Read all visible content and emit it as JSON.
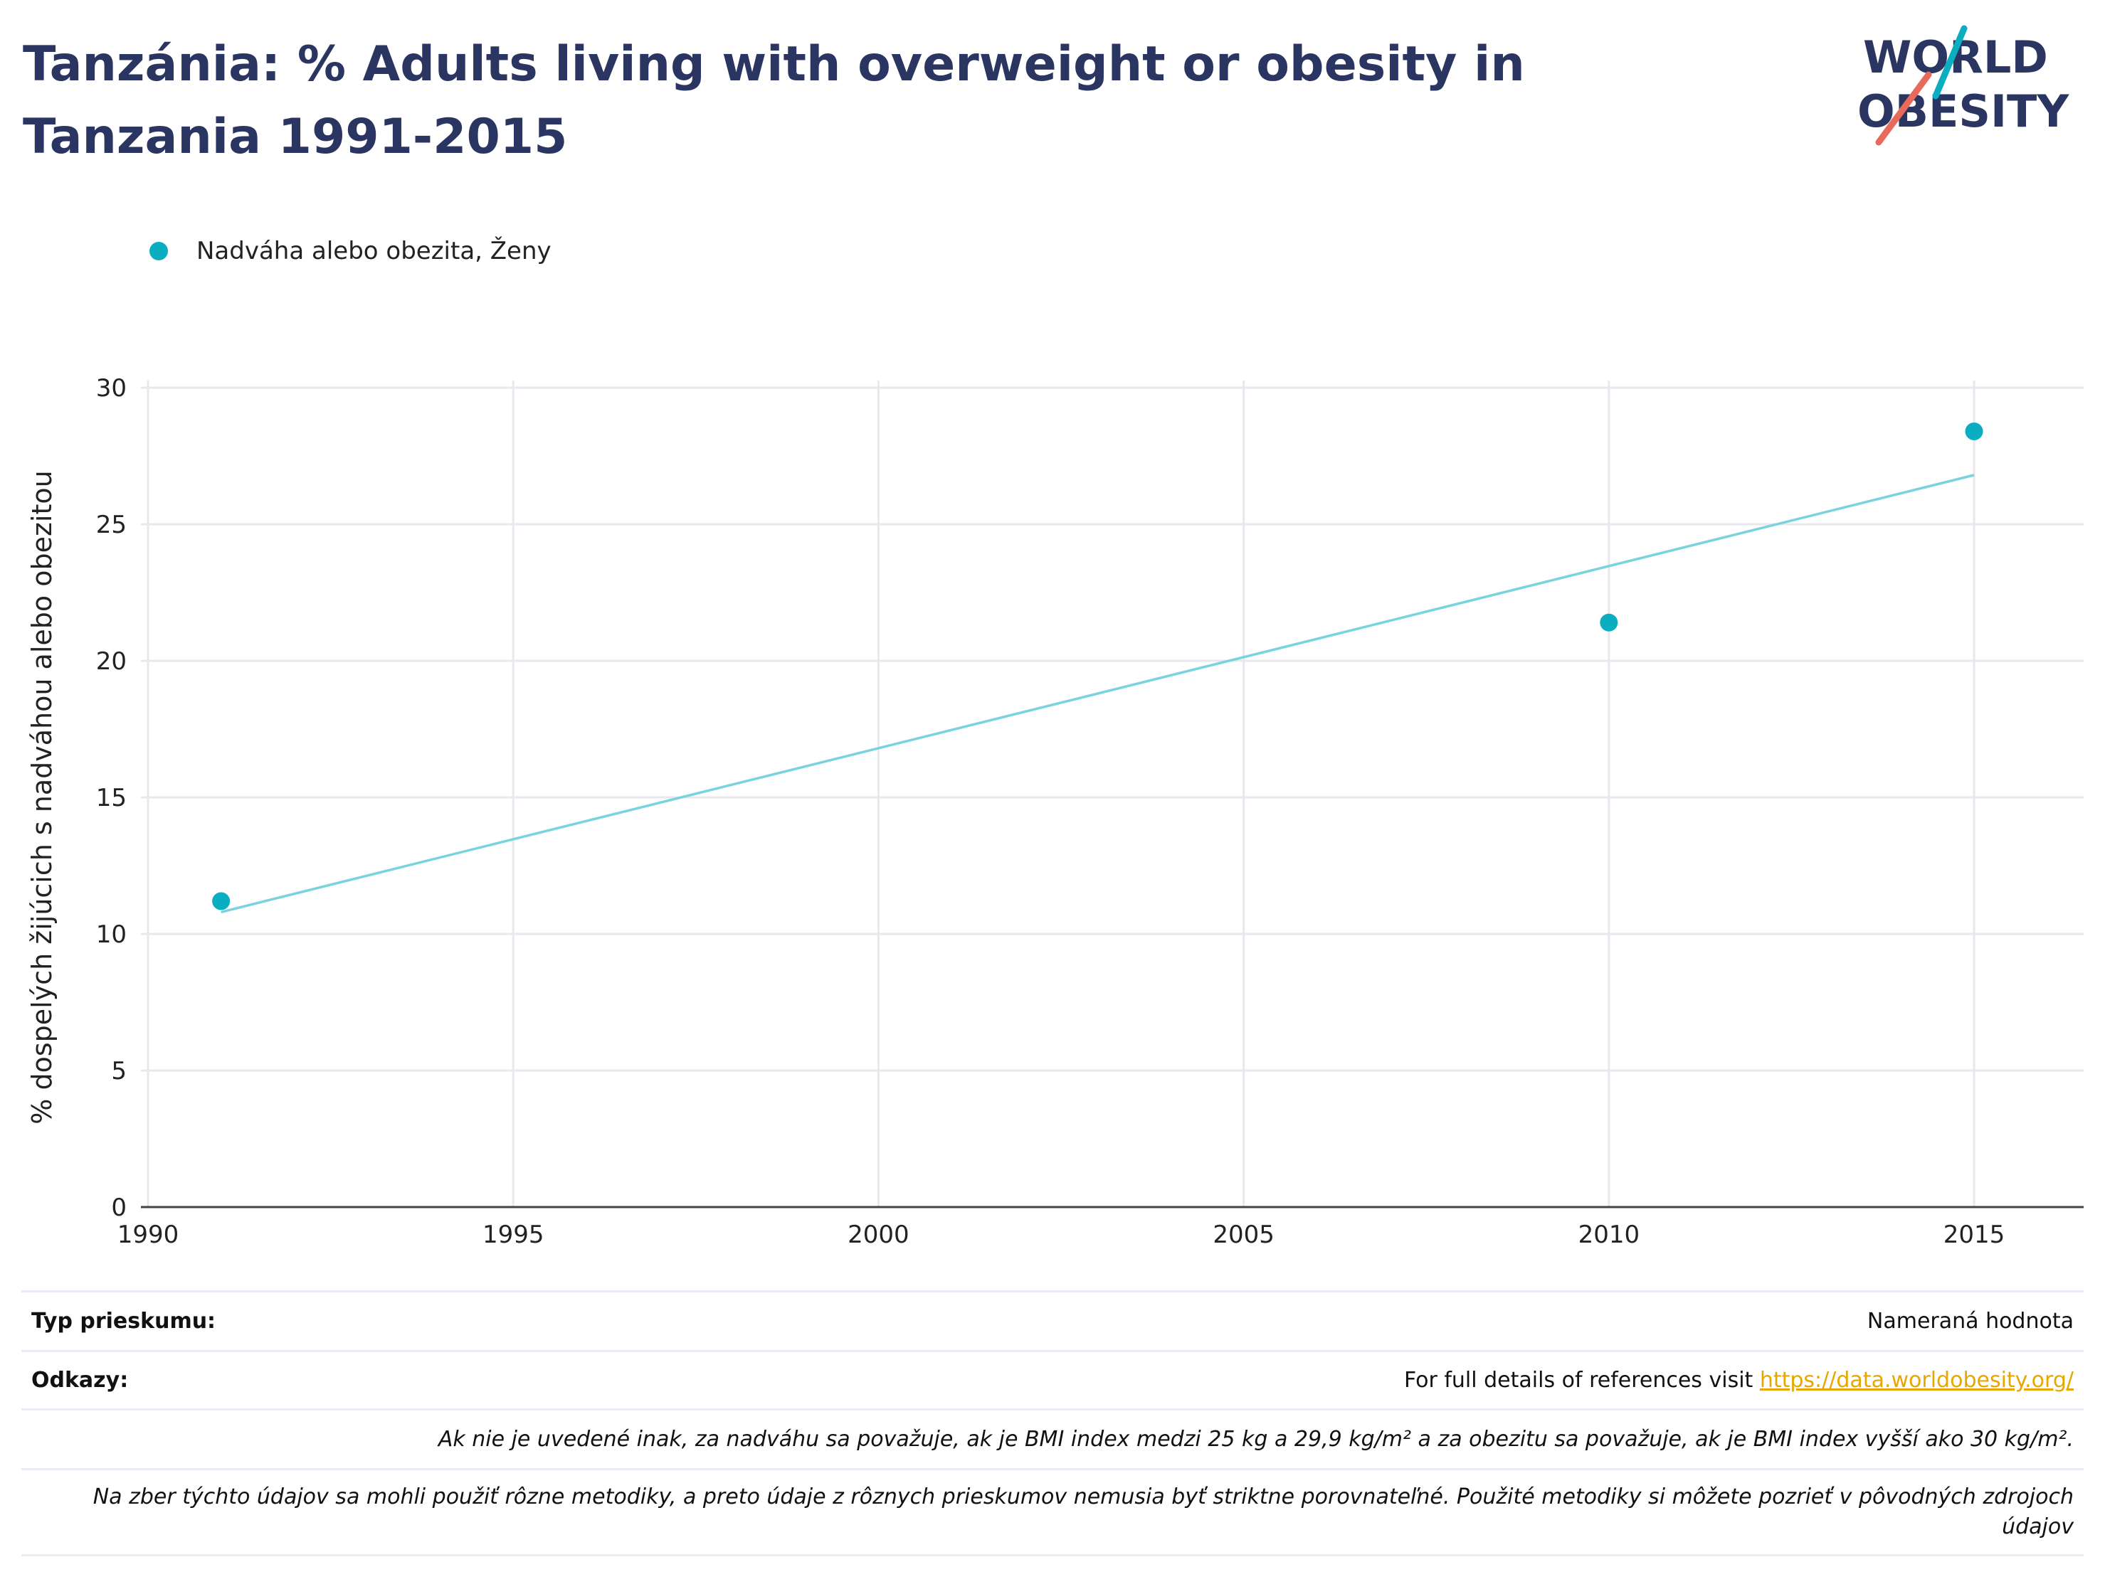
{
  "title": "Tanzánia: % Adults living with overweight or obesity in Tanzania 1991-2015",
  "logo": {
    "line1": "WORLD",
    "line2": "OBESITY"
  },
  "colors": {
    "series": "#0aaec0",
    "trend": "#79d3dc",
    "title": "#2b3561",
    "grid": "#e8e8ee",
    "axis": "#444444",
    "link": "#e6a800"
  },
  "chart_data": {
    "type": "scatter",
    "ylabel": "% dospelých žijúcich s nadváhou alebo obezitou",
    "xlabel": "",
    "xlim": [
      1990,
      2016.5
    ],
    "ylim": [
      0,
      30
    ],
    "x_ticks": [
      1990,
      1995,
      2000,
      2005,
      2010,
      2015
    ],
    "y_ticks": [
      0,
      5,
      10,
      15,
      20,
      25,
      30
    ],
    "grid": true,
    "legend_position": "top-left",
    "series": [
      {
        "name": "Nadváha alebo obezita, Ženy",
        "x": [
          1991,
          2010,
          2015
        ],
        "y": [
          11.2,
          21.4,
          28.4
        ]
      }
    ],
    "trendline": {
      "x": [
        1991,
        2015
      ],
      "y": [
        10.8,
        26.8
      ]
    }
  },
  "footer": {
    "survey_type_label": "Typ prieskumu:",
    "survey_type_value": "Nameraná hodnota",
    "references_label": "Odkazy:",
    "references_text": "For full details of references visit ",
    "references_link": "https://data.worldobesity.org/",
    "note1": "Ak nie je uvedené inak, za nadváhu sa považuje, ak je BMI index medzi 25 kg a 29,9 kg/m² a za obezitu sa považuje, ak je BMI index vyšší ako 30 kg/m².",
    "note2": "Na zber týchto údajov sa mohli použiť rôzne metodiky, a preto údaje z rôznych prieskumov nemusia byť striktne porovnateľné. Použité metodiky si môžete pozrieť v pôvodných zdrojoch údajov"
  }
}
